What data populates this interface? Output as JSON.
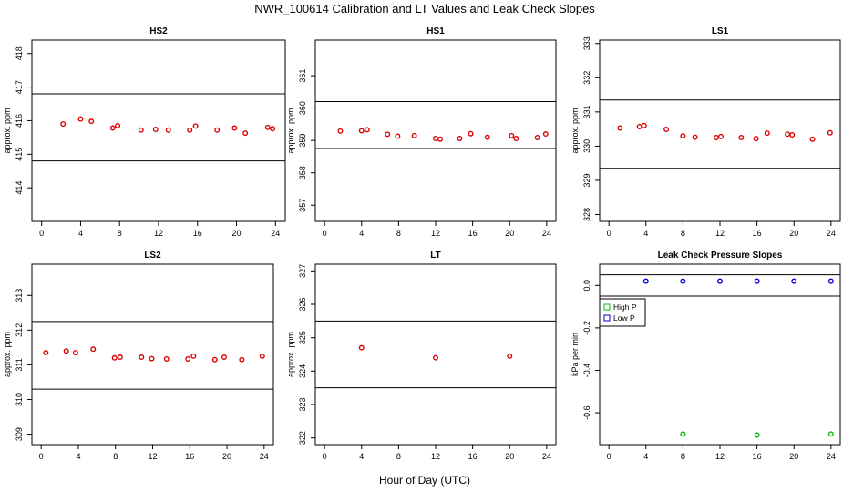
{
  "figure": {
    "title": "NWR_100614  Calibration and LT Values and Leak Check Slopes",
    "xlabel": "Hour of Day (UTC)"
  },
  "colors": {
    "red": "#dd0000",
    "green": "#00bb00",
    "blue": "#0000dd",
    "line": "#000000"
  },
  "chart_data": [
    {
      "type": "scatter",
      "title": "HS2",
      "ylabel": "approx. ppm",
      "xlim": [
        -1,
        25
      ],
      "ylim": [
        413,
        418.4
      ],
      "xticks": [
        0,
        4,
        8,
        12,
        16,
        20,
        24
      ],
      "yticks": [
        414,
        415,
        416,
        417,
        418
      ],
      "hlines": [
        414.8,
        416.8
      ],
      "series": [
        {
          "color": "red",
          "x": [
            2.2,
            4.0,
            5.1,
            7.3,
            7.8,
            10.2,
            11.7,
            13.0,
            15.2,
            15.8,
            18.0,
            19.8,
            20.9,
            23.2,
            23.7
          ],
          "y": [
            415.9,
            416.05,
            415.98,
            415.78,
            415.85,
            415.72,
            415.74,
            415.72,
            415.72,
            415.84,
            415.72,
            415.78,
            415.63,
            415.8,
            415.76
          ]
        }
      ]
    },
    {
      "type": "scatter",
      "title": "HS1",
      "ylabel": "approx. ppm",
      "xlim": [
        -1,
        25
      ],
      "ylim": [
        356.5,
        362.1
      ],
      "xticks": [
        0,
        4,
        8,
        12,
        16,
        20,
        24
      ],
      "yticks": [
        357,
        358,
        359,
        360,
        361
      ],
      "hlines": [
        358.75,
        360.2
      ],
      "series": [
        {
          "color": "red",
          "x": [
            1.7,
            4.0,
            4.6,
            6.8,
            7.9,
            9.7,
            12.0,
            12.5,
            14.6,
            15.8,
            17.6,
            20.2,
            20.7,
            23.0,
            23.9
          ],
          "y": [
            359.29,
            359.3,
            359.33,
            359.19,
            359.13,
            359.15,
            359.06,
            359.04,
            359.06,
            359.21,
            359.1,
            359.15,
            359.06,
            359.09,
            359.2
          ]
        }
      ]
    },
    {
      "type": "scatter",
      "title": "LS1",
      "ylabel": "approx. ppm",
      "xlim": [
        -1,
        25
      ],
      "ylim": [
        327.8,
        333.1
      ],
      "xticks": [
        0,
        4,
        8,
        12,
        16,
        20,
        24
      ],
      "yticks": [
        328,
        329,
        330,
        331,
        332,
        333
      ],
      "hlines": [
        329.35,
        331.35
      ],
      "series": [
        {
          "color": "red",
          "x": [
            1.2,
            3.3,
            3.8,
            6.2,
            8.0,
            9.3,
            11.6,
            12.1,
            14.3,
            15.9,
            17.1,
            19.3,
            19.8,
            22.0,
            23.9
          ],
          "y": [
            330.53,
            330.57,
            330.6,
            330.49,
            330.3,
            330.26,
            330.25,
            330.28,
            330.25,
            330.22,
            330.38,
            330.35,
            330.33,
            330.2,
            330.39
          ]
        }
      ]
    },
    {
      "type": "scatter",
      "title": "LS2",
      "ylabel": "approx. ppm",
      "xlim": [
        -1,
        25
      ],
      "ylim": [
        308.7,
        313.9
      ],
      "xticks": [
        0,
        4,
        8,
        12,
        16,
        20,
        24
      ],
      "yticks": [
        309,
        310,
        311,
        312,
        313
      ],
      "hlines": [
        310.3,
        312.25
      ],
      "series": [
        {
          "color": "red",
          "x": [
            0.5,
            2.7,
            3.7,
            5.6,
            7.9,
            8.5,
            10.8,
            11.9,
            13.5,
            15.8,
            16.4,
            18.7,
            19.7,
            21.6,
            23.8
          ],
          "y": [
            311.35,
            311.4,
            311.35,
            311.45,
            311.2,
            311.22,
            311.22,
            311.18,
            311.17,
            311.17,
            311.25,
            311.15,
            311.22,
            311.15,
            311.25
          ]
        }
      ]
    },
    {
      "type": "scatter",
      "title": "LT",
      "ylabel": "approx. ppm",
      "xlim": [
        -1,
        25
      ],
      "ylim": [
        321.8,
        327.2
      ],
      "xticks": [
        0,
        4,
        8,
        12,
        16,
        20,
        24
      ],
      "yticks": [
        322,
        323,
        324,
        325,
        326,
        327
      ],
      "hlines": [
        323.5,
        325.5
      ],
      "series": [
        {
          "color": "red",
          "x": [
            4.0,
            12.0,
            20.0
          ],
          "y": [
            324.7,
            324.4,
            324.45
          ]
        }
      ]
    },
    {
      "type": "scatter",
      "title": "Leak Check Pressure Slopes",
      "ylabel": "kPa per min",
      "xlim": [
        -1,
        25
      ],
      "ylim": [
        -0.75,
        0.1
      ],
      "xticks": [
        0,
        4,
        8,
        12,
        16,
        20,
        24
      ],
      "yticks": [
        0.0,
        -0.2,
        -0.4,
        -0.6
      ],
      "yticklabels": [
        "0.0",
        "-0.2",
        "-0.4",
        "-0.6"
      ],
      "hlines": [
        -0.05,
        0.05
      ],
      "legend": {
        "position": "left",
        "entries": [
          "High P",
          "Low P"
        ]
      },
      "series": [
        {
          "name": "High P",
          "color": "green",
          "x": [
            8,
            16,
            24
          ],
          "y": [
            -0.7,
            -0.705,
            -0.7
          ]
        },
        {
          "name": "Low P",
          "color": "blue",
          "x": [
            4,
            8,
            12,
            16,
            20,
            24
          ],
          "y": [
            0.02,
            0.02,
            0.02,
            0.02,
            0.02,
            0.02
          ]
        }
      ]
    }
  ]
}
